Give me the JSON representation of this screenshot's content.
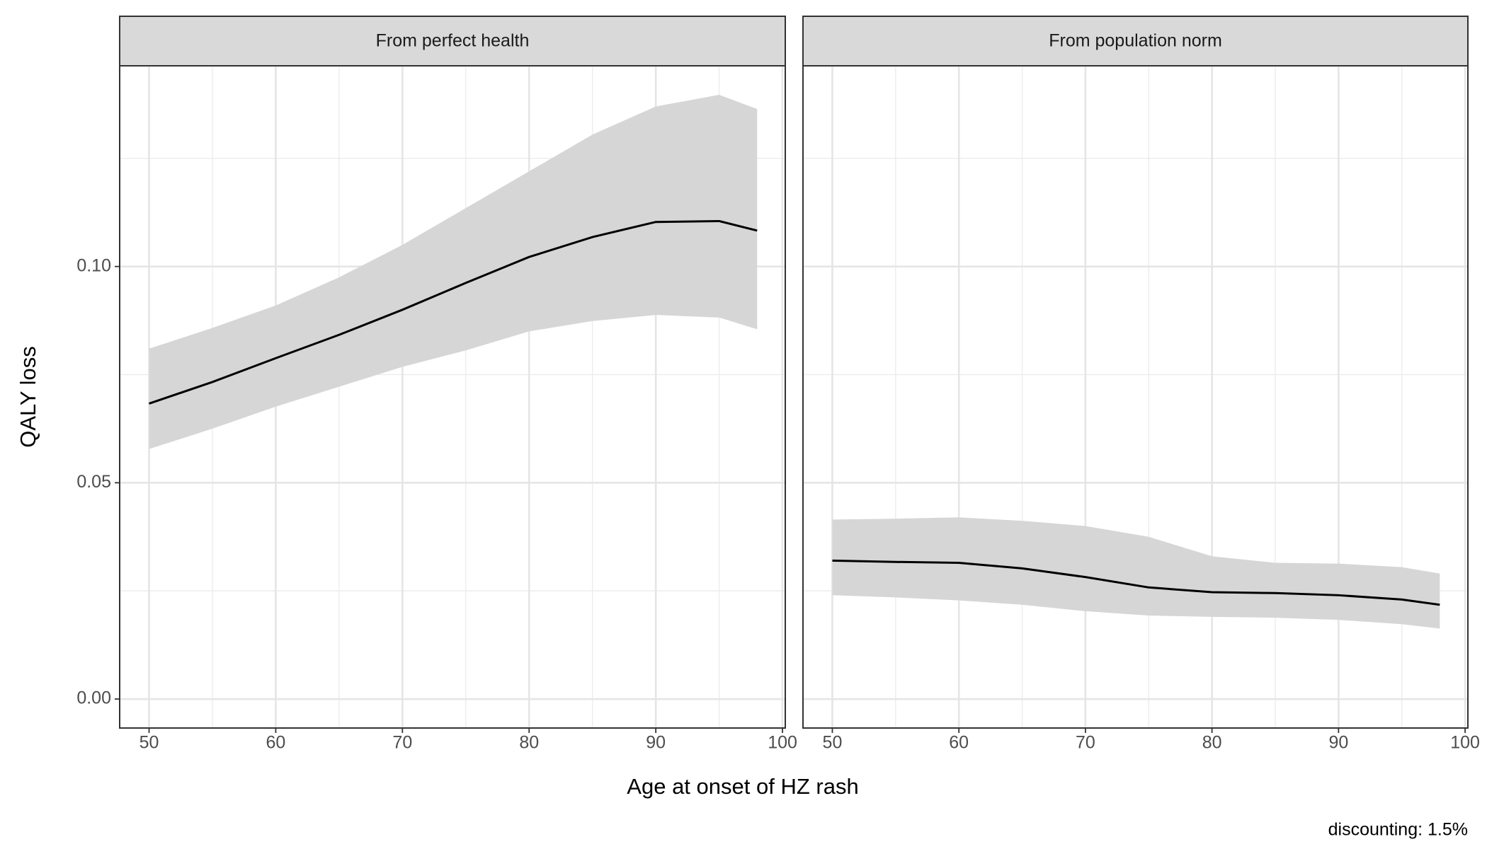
{
  "chart_data": {
    "type": "line",
    "xlabel": "Age at onset of HZ rash",
    "ylabel": "QALY loss",
    "caption": "discounting: 1.5%",
    "xlim": [
      47.68,
      100.22
    ],
    "ylim": [
      -0.0067,
      0.1464
    ],
    "xticks": [
      50,
      60,
      70,
      80,
      90,
      100
    ],
    "yticks": [
      {
        "value": 0,
        "label": "0.00"
      },
      {
        "value": 0.05,
        "label": "0.05"
      },
      {
        "value": 0.1,
        "label": "0.10"
      }
    ],
    "minor_xticks": [
      55,
      65,
      75,
      85,
      95
    ],
    "minor_yticks": [
      0.025,
      0.075,
      0.125
    ],
    "grid": true,
    "line_color": "#000000",
    "band_color": "#d6d6d6",
    "x": [
      50,
      55,
      60,
      65,
      70,
      75,
      80,
      85,
      90,
      95,
      98
    ],
    "panels": [
      {
        "title": "From perfect health",
        "values": [
          0.0683,
          0.0733,
          0.0788,
          0.0842,
          0.09,
          0.0962,
          0.1022,
          0.1068,
          0.1103,
          0.1105,
          0.1083
        ],
        "lower": [
          0.0578,
          0.0625,
          0.0676,
          0.0722,
          0.0768,
          0.0806,
          0.085,
          0.0874,
          0.0888,
          0.0882,
          0.0855
        ],
        "upper": [
          0.081,
          0.0858,
          0.091,
          0.0975,
          0.105,
          0.1135,
          0.122,
          0.1305,
          0.137,
          0.1397,
          0.1364
        ]
      },
      {
        "title": "From population norm",
        "values": [
          0.032,
          0.0317,
          0.0315,
          0.0302,
          0.0282,
          0.0258,
          0.0247,
          0.0245,
          0.024,
          0.023,
          0.0218
        ],
        "lower": [
          0.024,
          0.0235,
          0.0228,
          0.0218,
          0.0203,
          0.0193,
          0.019,
          0.0188,
          0.0183,
          0.0173,
          0.0163
        ],
        "upper": [
          0.0415,
          0.0417,
          0.042,
          0.0412,
          0.04,
          0.0375,
          0.033,
          0.0315,
          0.0313,
          0.0305,
          0.029
        ]
      }
    ]
  }
}
